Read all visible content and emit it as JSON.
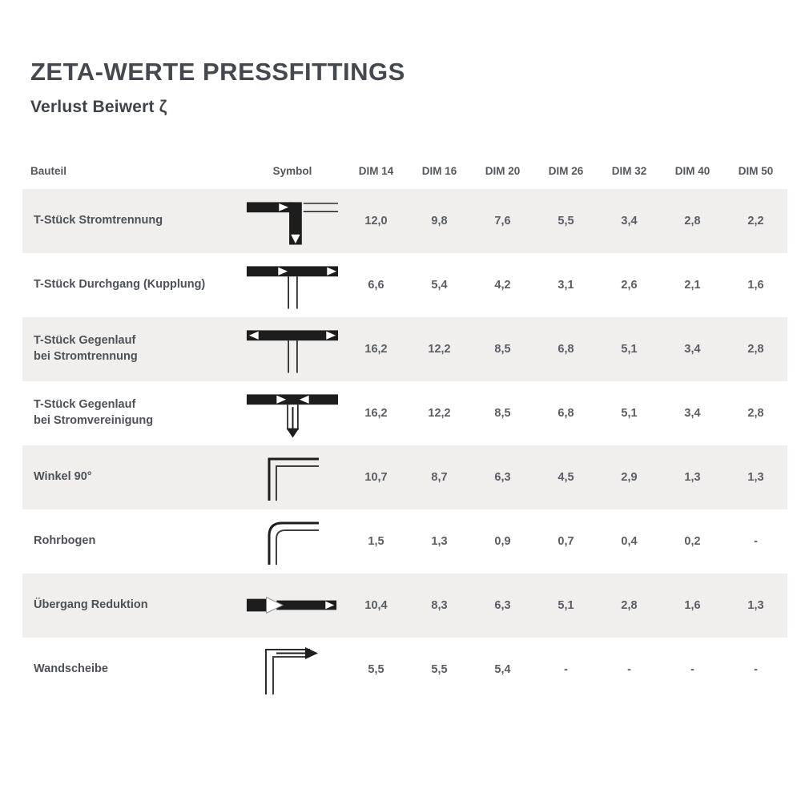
{
  "page": {
    "title": "ZETA-WERTE PRESSFITTINGS",
    "subtitle": "Verlust Beiwert ζ"
  },
  "colors": {
    "title_text": "#45484e",
    "body_text": "#4e5156",
    "value_text": "#5a5d63",
    "stripe_background": "#f0efee",
    "symbol_black": "#1d1d1d",
    "page_background": "#ffffff"
  },
  "table": {
    "columns": [
      "Bauteil",
      "Symbol",
      "DIM 14",
      "DIM 16",
      "DIM 20",
      "DIM 26",
      "DIM 32",
      "DIM 40",
      "DIM 50"
    ],
    "rows": [
      {
        "name_lines": [
          "T-Stück Stromtrennung"
        ],
        "symbol": "tee-split-icon",
        "values": [
          "12,0",
          "9,8",
          "7,6",
          "5,5",
          "3,4",
          "2,8",
          "2,2"
        ]
      },
      {
        "name_lines": [
          "T-Stück Durchgang (Kupplung)"
        ],
        "symbol": "tee-through-icon",
        "values": [
          "6,6",
          "5,4",
          "4,2",
          "3,1",
          "2,6",
          "2,1",
          "1,6"
        ]
      },
      {
        "name_lines": [
          "T-Stück Gegenlauf",
          "bei Stromtrennung"
        ],
        "symbol": "tee-counterflow-split-icon",
        "values": [
          "16,2",
          "12,2",
          "8,5",
          "6,8",
          "5,1",
          "3,4",
          "2,8"
        ]
      },
      {
        "name_lines": [
          "T-Stück Gegenlauf",
          "bei Stromvereinigung"
        ],
        "symbol": "tee-counterflow-merge-icon",
        "values": [
          "16,2",
          "12,2",
          "8,5",
          "6,8",
          "5,1",
          "3,4",
          "2,8"
        ]
      },
      {
        "name_lines": [
          "Winkel 90°"
        ],
        "symbol": "elbow-90-icon",
        "values": [
          "10,7",
          "8,7",
          "6,3",
          "4,5",
          "2,9",
          "1,3",
          "1,3"
        ]
      },
      {
        "name_lines": [
          "Rohrbogen"
        ],
        "symbol": "pipe-bend-icon",
        "values": [
          "1,5",
          "1,3",
          "0,9",
          "0,7",
          "0,4",
          "0,2",
          "-"
        ]
      },
      {
        "name_lines": [
          "Übergang Reduktion"
        ],
        "symbol": "reducer-icon",
        "values": [
          "10,4",
          "8,3",
          "6,3",
          "5,1",
          "2,8",
          "1,6",
          "1,3"
        ]
      },
      {
        "name_lines": [
          "Wandscheibe"
        ],
        "symbol": "wall-plate-icon",
        "values": [
          "5,5",
          "5,5",
          "5,4",
          "-",
          "-",
          "-",
          "-"
        ]
      }
    ]
  }
}
